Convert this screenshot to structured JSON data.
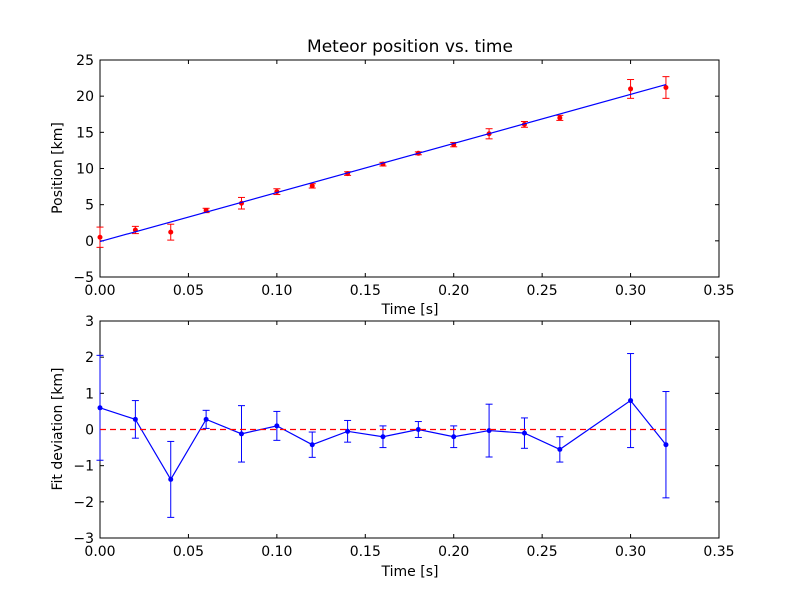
{
  "colors": {
    "fit_line": "#0000ff",
    "measured_points": "#ff0000",
    "deviation_series": "#0000ff",
    "zero_reference": "#ff0000",
    "axes": "#000000",
    "background": "#ffffff"
  },
  "chart_data": [
    {
      "type": "scatter",
      "title": "Meteor position vs. time",
      "xlabel": "Time [s]",
      "ylabel": "Position [km]",
      "xlim": [
        0,
        0.35
      ],
      "ylim": [
        -5,
        25
      ],
      "xticks": [
        "0.00",
        "0.05",
        "0.10",
        "0.15",
        "0.20",
        "0.25",
        "0.30",
        "0.35"
      ],
      "yticks": [
        "−5",
        "0",
        "5",
        "10",
        "15",
        "20",
        "25"
      ],
      "grid": false,
      "legend": "none",
      "series": [
        {
          "style": "points-with-error-bars",
          "x": [
            0.0,
            0.02,
            0.04,
            0.06,
            0.08,
            0.1,
            0.12,
            0.14,
            0.16,
            0.18,
            0.2,
            0.22,
            0.24,
            0.26,
            0.3,
            0.32
          ],
          "y": [
            0.5,
            1.5,
            1.2,
            4.2,
            5.2,
            6.8,
            7.6,
            9.3,
            10.6,
            12.1,
            13.3,
            14.8,
            16.1,
            17.0,
            21.0,
            21.2
          ],
          "yerr": [
            1.4,
            0.5,
            1.1,
            0.3,
            0.8,
            0.4,
            0.3,
            0.25,
            0.25,
            0.2,
            0.3,
            0.7,
            0.4,
            0.35,
            1.3,
            1.5
          ]
        },
        {
          "style": "line",
          "x": [
            0.0,
            0.32
          ],
          "y": [
            -0.1,
            21.6
          ]
        }
      ]
    },
    {
      "type": "line",
      "title": "",
      "xlabel": "Time [s]",
      "ylabel": "Fit deviation [km]",
      "xlim": [
        0,
        0.35
      ],
      "ylim": [
        -3,
        3
      ],
      "xticks": [
        "0.00",
        "0.05",
        "0.10",
        "0.15",
        "0.20",
        "0.25",
        "0.30",
        "0.35"
      ],
      "yticks": [
        "−3",
        "−2",
        "−1",
        "0",
        "1",
        "2",
        "3"
      ],
      "grid": false,
      "legend": "none",
      "series": [
        {
          "style": "line-with-markers-and-error-bars",
          "x": [
            0.0,
            0.02,
            0.04,
            0.06,
            0.08,
            0.1,
            0.12,
            0.14,
            0.16,
            0.18,
            0.2,
            0.22,
            0.24,
            0.26,
            0.3,
            0.32
          ],
          "y": [
            0.6,
            0.28,
            -1.38,
            0.28,
            -0.12,
            0.1,
            -0.42,
            -0.05,
            -0.2,
            0.0,
            -0.2,
            -0.03,
            -0.1,
            -0.55,
            0.8,
            -0.42
          ],
          "yerr": [
            1.45,
            0.52,
            1.05,
            0.25,
            0.78,
            0.4,
            0.35,
            0.3,
            0.3,
            0.22,
            0.3,
            0.73,
            0.42,
            0.35,
            1.3,
            1.47
          ]
        },
        {
          "style": "dashed-reference",
          "x": [
            0.0,
            0.32
          ],
          "y": [
            0,
            0
          ]
        }
      ]
    }
  ]
}
